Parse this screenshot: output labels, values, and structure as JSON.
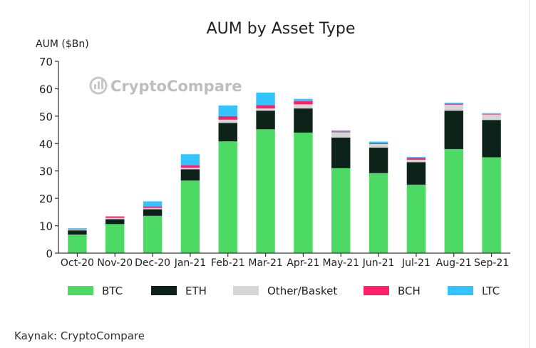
{
  "chart_data": {
    "type": "bar",
    "stacked": true,
    "title": "AUM by Asset Type",
    "ylabel": "AUM ($Bn)",
    "xlabel": "",
    "ylim": [
      0,
      70
    ],
    "yticks": [
      0,
      10,
      20,
      30,
      40,
      50,
      60,
      70
    ],
    "grid": false,
    "legend_position": "bottom",
    "categories": [
      "Oct-20",
      "Nov-20",
      "Dec-20",
      "Jan-21",
      "Feb-21",
      "Mar-21",
      "Apr-21",
      "May-21",
      "Jun-21",
      "Jul-21",
      "Aug-21",
      "Sep-21"
    ],
    "series": [
      {
        "name": "BTC",
        "color": "#4cd964",
        "values": [
          6.8,
          10.6,
          13.6,
          26.5,
          40.8,
          45.2,
          44.0,
          31.0,
          29.2,
          25.0,
          38.0,
          35.0
        ]
      },
      {
        "name": "ETH",
        "color": "#0d2218",
        "values": [
          1.5,
          1.8,
          2.4,
          4.1,
          6.7,
          6.8,
          8.8,
          11.2,
          9.3,
          8.2,
          14.0,
          13.6
        ]
      },
      {
        "name": "Other/Basket",
        "color": "#d6d6d6",
        "values": [
          0.4,
          0.5,
          0.5,
          0.6,
          1.2,
          0.8,
          1.5,
          1.9,
          1.3,
          0.9,
          2.2,
          2.0
        ]
      },
      {
        "name": "BCH",
        "color": "#ff1f6b",
        "values": [
          0.2,
          0.4,
          0.6,
          0.9,
          1.3,
          1.2,
          1.2,
          0.3,
          0.3,
          0.7,
          0.3,
          0.2
        ]
      },
      {
        "name": "LTC",
        "color": "#33c3ff",
        "values": [
          0.2,
          0.2,
          1.8,
          4.0,
          3.9,
          4.6,
          0.8,
          0.4,
          0.6,
          0.3,
          0.4,
          0.3
        ]
      }
    ]
  },
  "watermark": {
    "brand": "CryptoCompare"
  },
  "source": {
    "text": "Kaynak: CryptoCompare"
  }
}
